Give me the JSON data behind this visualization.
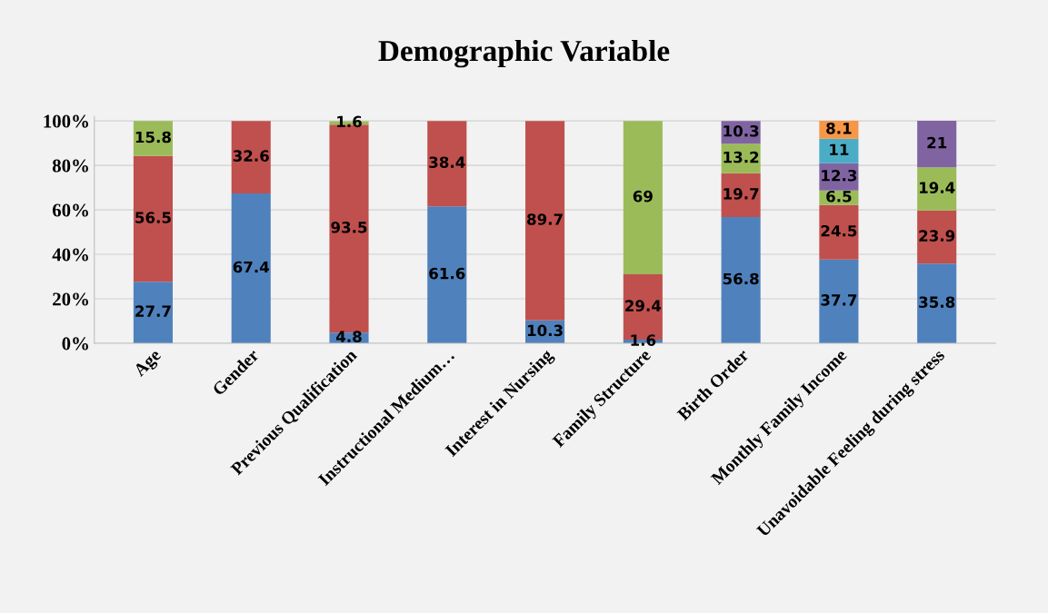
{
  "chart_data": {
    "type": "bar",
    "title": "Demographic Variable",
    "stacked": true,
    "data_labels": true,
    "grid": "y",
    "legend": false,
    "categories": [
      "Age",
      "Gender",
      "Previous Qualification",
      "Instructional Medium…",
      "Interest in Nursing",
      "Family Structure",
      "Birth Order",
      "Monthly Family Income",
      "Unavoidable Feeling during stress"
    ],
    "ylim": [
      0,
      102
    ],
    "yticks": [
      {
        "value": 0,
        "label": "0%"
      },
      {
        "value": 20,
        "label": "20%"
      },
      {
        "value": 40,
        "label": "40%"
      },
      {
        "value": 60,
        "label": "60%"
      },
      {
        "value": 80,
        "label": "80%"
      },
      {
        "value": 100,
        "label": "100%"
      }
    ],
    "series": [
      {
        "color": "#4f81bd",
        "values": [
          27.7,
          67.4,
          4.8,
          61.6,
          10.3,
          1.6,
          56.8,
          37.7,
          35.8
        ]
      },
      {
        "color": "#c0504d",
        "values": [
          56.5,
          32.6,
          93.5,
          38.4,
          89.7,
          29.4,
          19.7,
          24.5,
          23.9
        ]
      },
      {
        "color": "#9bbb59",
        "values": [
          15.8,
          null,
          1.6,
          null,
          null,
          69,
          13.2,
          6.5,
          19.4
        ]
      },
      {
        "color": "#8064a2",
        "values": [
          null,
          null,
          null,
          null,
          null,
          null,
          10.3,
          12.3,
          21
        ]
      },
      {
        "color": "#4bacc6",
        "values": [
          null,
          null,
          null,
          null,
          null,
          null,
          null,
          11,
          null
        ]
      },
      {
        "color": "#f79646",
        "values": [
          null,
          null,
          null,
          null,
          null,
          null,
          null,
          8.1,
          null
        ]
      }
    ]
  }
}
